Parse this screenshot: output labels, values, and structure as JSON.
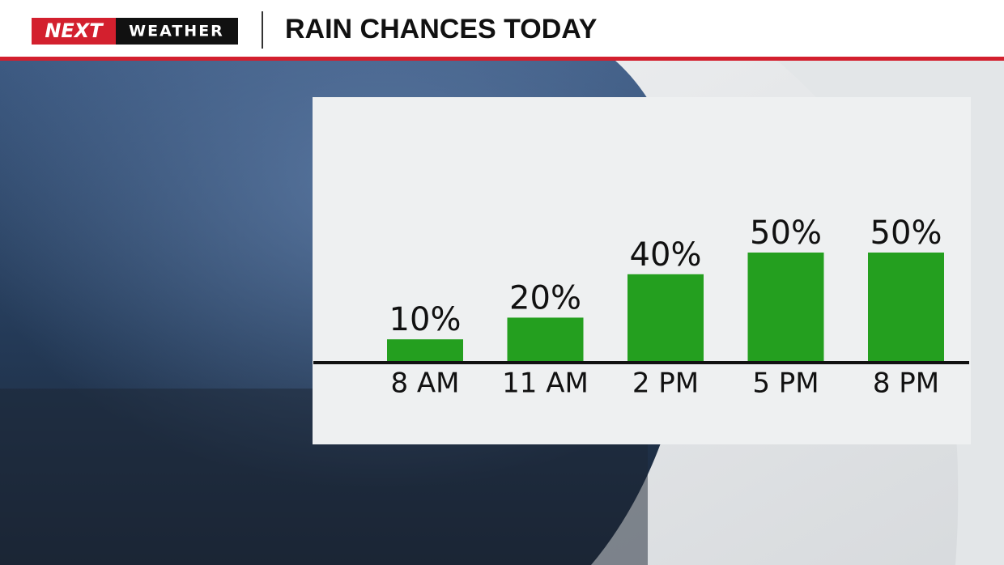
{
  "header": {
    "logo": "NEXT",
    "logo_sub": "WEATHER"
  },
  "chart_data": {
    "type": "bar",
    "title": "RAIN CHANCES TODAY",
    "categories": [
      "8 AM",
      "11 AM",
      "2 PM",
      "5 PM",
      "8 PM"
    ],
    "values": [
      10,
      20,
      40,
      50,
      50
    ],
    "value_labels": [
      "10%",
      "20%",
      "40%",
      "50%",
      "50%"
    ],
    "color": "#249f1f"
  }
}
